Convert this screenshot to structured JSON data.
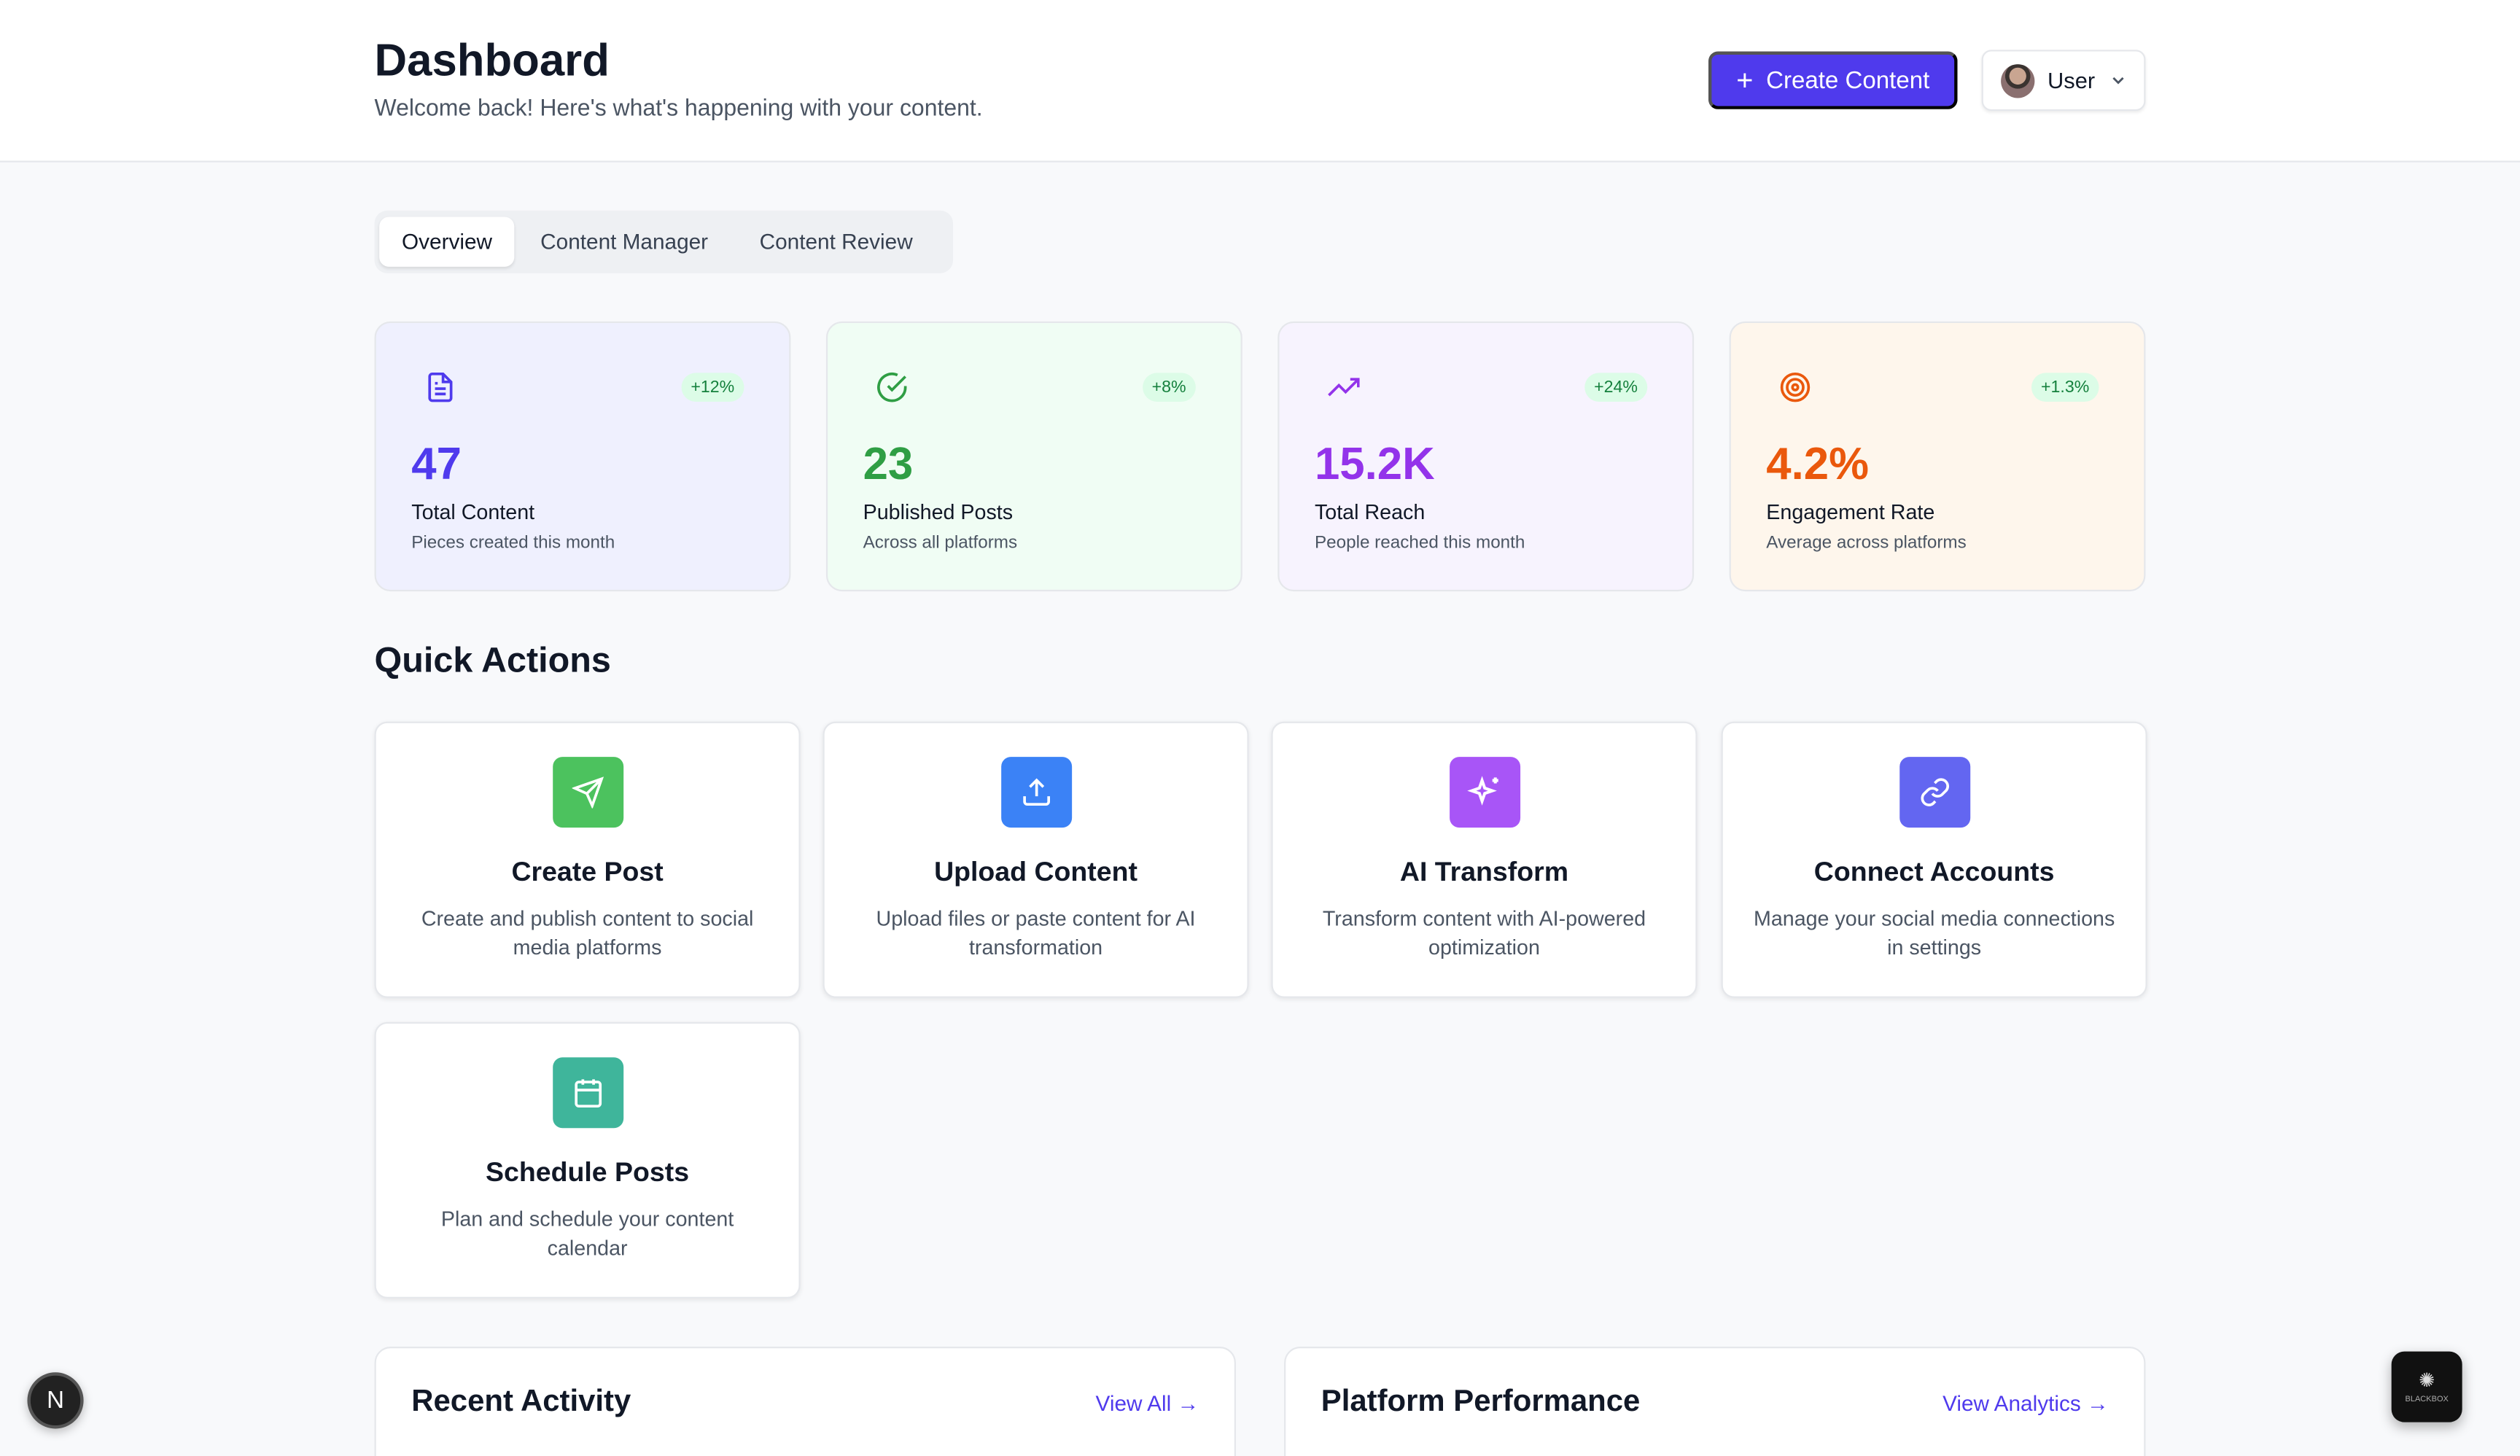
{
  "header": {
    "title": "Dashboard",
    "subtitle": "Welcome back! Here's what's happening with your content.",
    "create_label": "Create Content",
    "user_label": "User"
  },
  "tabs": [
    {
      "label": "Overview",
      "active": true
    },
    {
      "label": "Content Manager"
    },
    {
      "label": "Content Review"
    }
  ],
  "stats": [
    {
      "value": "47",
      "label": "Total Content",
      "sub": "Pieces created this month",
      "change": "+12%",
      "color": "#4f3aed",
      "bg": "#eff0fe",
      "icon": "file-text-icon"
    },
    {
      "value": "23",
      "label": "Published Posts",
      "sub": "Across all platforms",
      "change": "+8%",
      "color": "#2f9e44",
      "bg": "#f0fdf4",
      "icon": "check-circle-icon"
    },
    {
      "value": "15.2K",
      "label": "Total Reach",
      "sub": "People reached this month",
      "change": "+24%",
      "color": "#9333ea",
      "bg": "#f7f3fe",
      "icon": "trending-up-icon"
    },
    {
      "value": "4.2%",
      "label": "Engagement Rate",
      "sub": "Average across platforms",
      "change": "+1.3%",
      "color": "#ea580c",
      "bg": "#fef6ec",
      "icon": "target-icon"
    }
  ],
  "quick_actions": {
    "title": "Quick Actions",
    "items": [
      {
        "title": "Create Post",
        "desc": "Create and publish content to social media platforms",
        "color": "#4cc25e",
        "icon": "send-icon"
      },
      {
        "title": "Upload Content",
        "desc": "Upload files or paste content for AI transformation",
        "color": "#3b82f6",
        "icon": "upload-icon"
      },
      {
        "title": "AI Transform",
        "desc": "Transform content with AI-powered optimization",
        "color": "#a855f7",
        "icon": "sparkles-icon"
      },
      {
        "title": "Connect Accounts",
        "desc": "Manage your social media connections in settings",
        "color": "#6366f1",
        "icon": "link-icon"
      },
      {
        "title": "Schedule Posts",
        "desc": "Plan and schedule your content calendar",
        "color": "#3fb59b",
        "icon": "calendar-icon"
      }
    ]
  },
  "recent": {
    "title": "Recent Activity",
    "link": "View All"
  },
  "platform": {
    "title": "Platform Performance",
    "link": "View Analytics"
  },
  "badges": {
    "next": "N",
    "blackbox": "BLACKBOX"
  }
}
